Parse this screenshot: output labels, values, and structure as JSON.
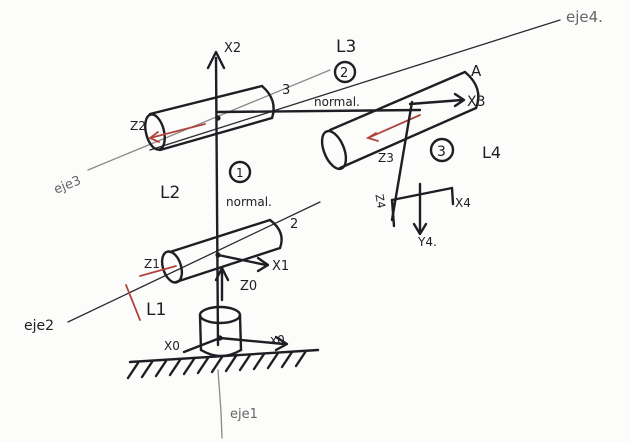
{
  "labels": {
    "axis_x2": "X2",
    "link_L3": "L3",
    "joint_3_num": "3",
    "circle_2": "2",
    "normal_top": "normal.",
    "point_A": "A",
    "axis_x3": "X3",
    "eje4": "eje4.",
    "axis_z2": "Z2",
    "eje3": "eje3",
    "circle_1": "1",
    "axis_z3": "Z3",
    "circle_3": "3",
    "link_L4": "L4",
    "link_L2": "L2",
    "normal_mid": "normal.",
    "axis_z4": "Z4",
    "axis_x4": "X4",
    "axis_y4": "Y4.",
    "joint_2_num": "2",
    "axis_z1": "Z1",
    "axis_x1": "X1",
    "axis_z0": "Z0",
    "eje2": "eje2",
    "link_L1": "L1",
    "axis_x0": "X0",
    "axis_x0_right": "x0",
    "eje1": "eje1"
  },
  "colors": {
    "ink": "#1e1e24",
    "red_pencil": "#b0453d",
    "grey_pencil": "#8a8a8a",
    "paper": "#fcfcfb"
  }
}
